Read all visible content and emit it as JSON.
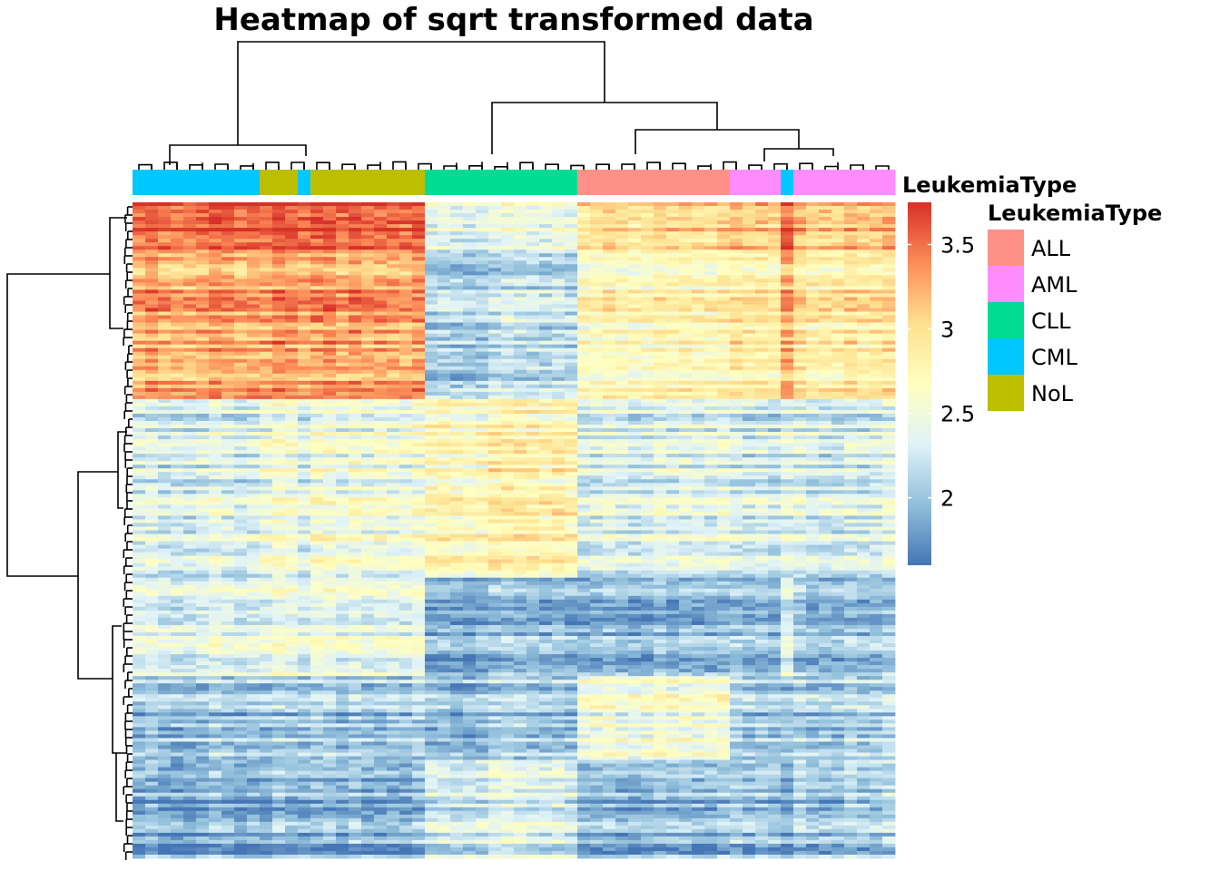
{
  "chart_data": {
    "type": "heatmap",
    "title": "Heatmap of sqrt transformed data",
    "annotation_track": "LeukemiaType",
    "legend_title": "LeukemiaType",
    "color_scale": {
      "title": "",
      "range": [
        1.6,
        3.75
      ],
      "ticks": [
        "2",
        "2.5",
        "3",
        "3.5"
      ],
      "tick_values": [
        2,
        2.5,
        3,
        3.5
      ],
      "colors": [
        "#4575b4",
        "#91bfdb",
        "#e0f3f8",
        "#ffffbf",
        "#fee090",
        "#fc8d59",
        "#d73027"
      ]
    },
    "groups": [
      {
        "label": "ALL",
        "color": "#ff9087"
      },
      {
        "label": "AML",
        "color": "#ff8cff"
      },
      {
        "label": "CLL",
        "color": "#00dd93"
      },
      {
        "label": "CML",
        "color": "#00c8ff"
      },
      {
        "label": "NoL",
        "color": "#bcbe00"
      }
    ],
    "column_annotation": [
      {
        "group": "CML",
        "n": 10
      },
      {
        "group": "NoL",
        "n": 3
      },
      {
        "group": "CML",
        "n": 1
      },
      {
        "group": "NoL",
        "n": 9
      },
      {
        "group": "CLL",
        "n": 12
      },
      {
        "group": "ALL",
        "n": 12
      },
      {
        "group": "AML",
        "n": 4
      },
      {
        "group": "CML",
        "n": 1
      },
      {
        "group": "AML",
        "n": 8
      }
    ],
    "row_clusters": [
      {
        "rows": 0.3,
        "levels": {
          "CML": 3.25,
          "NoL": 3.3,
          "CLL": 2.15,
          "ALL": 2.75,
          "AML": 2.9
        }
      },
      {
        "rows": 0.27,
        "levels": {
          "CML": 2.3,
          "NoL": 2.5,
          "CLL": 2.75,
          "ALL": 2.35,
          "AML": 2.3
        }
      },
      {
        "rows": 0.15,
        "levels": {
          "CML": 2.35,
          "NoL": 2.45,
          "CLL": 1.95,
          "ALL": 1.95,
          "AML": 2.0
        }
      },
      {
        "rows": 0.13,
        "levels": {
          "CML": 2.0,
          "NoL": 2.05,
          "CLL": 2.0,
          "ALL": 2.55,
          "AML": 2.1
        }
      },
      {
        "rows": 0.15,
        "levels": {
          "CML": 1.85,
          "NoL": 1.9,
          "CLL": 2.3,
          "ALL": 1.95,
          "AML": 2.05
        }
      }
    ]
  }
}
